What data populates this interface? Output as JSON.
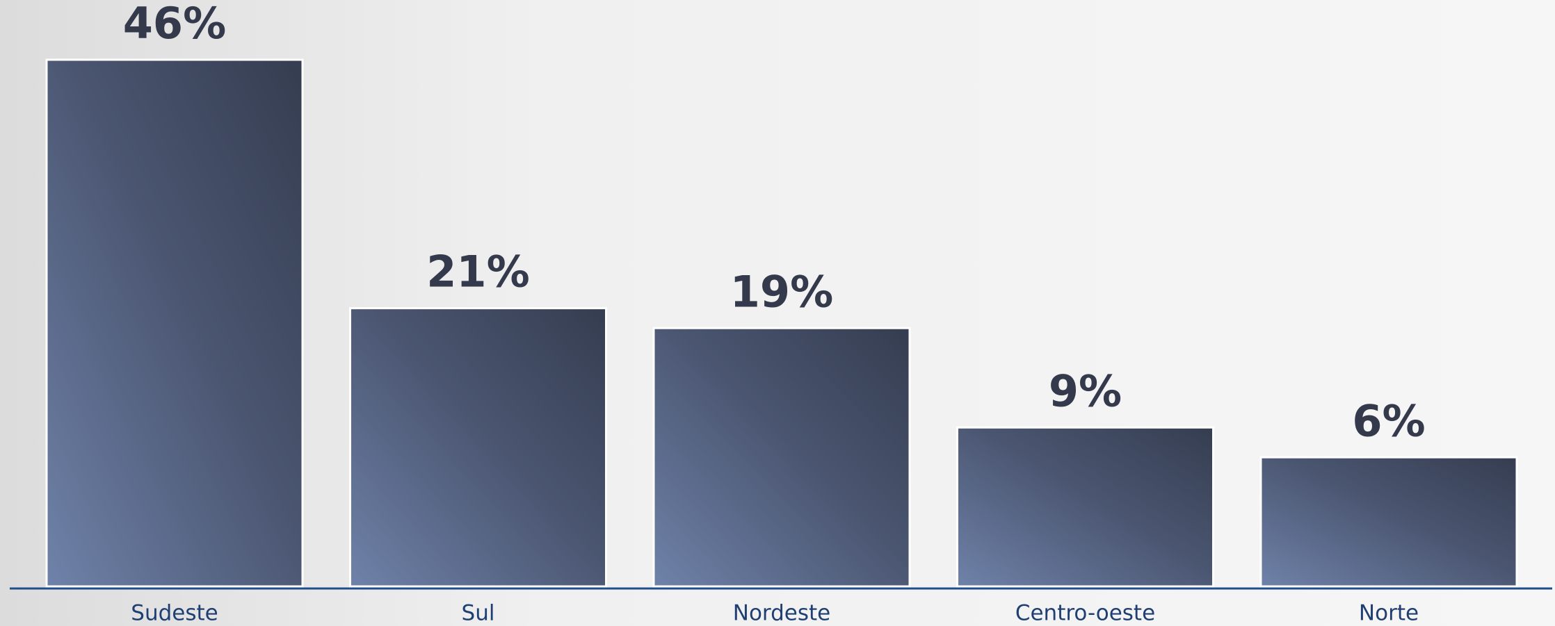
{
  "chart_data": {
    "type": "bar",
    "categories": [
      "Sudeste",
      "Sul",
      "Nordeste",
      "Centro-oeste",
      "Norte"
    ],
    "values": [
      46,
      21,
      19,
      9,
      6
    ],
    "value_labels": [
      "46%",
      "21%",
      "19%",
      "9%",
      "6%"
    ],
    "color": "#3a4357"
  }
}
